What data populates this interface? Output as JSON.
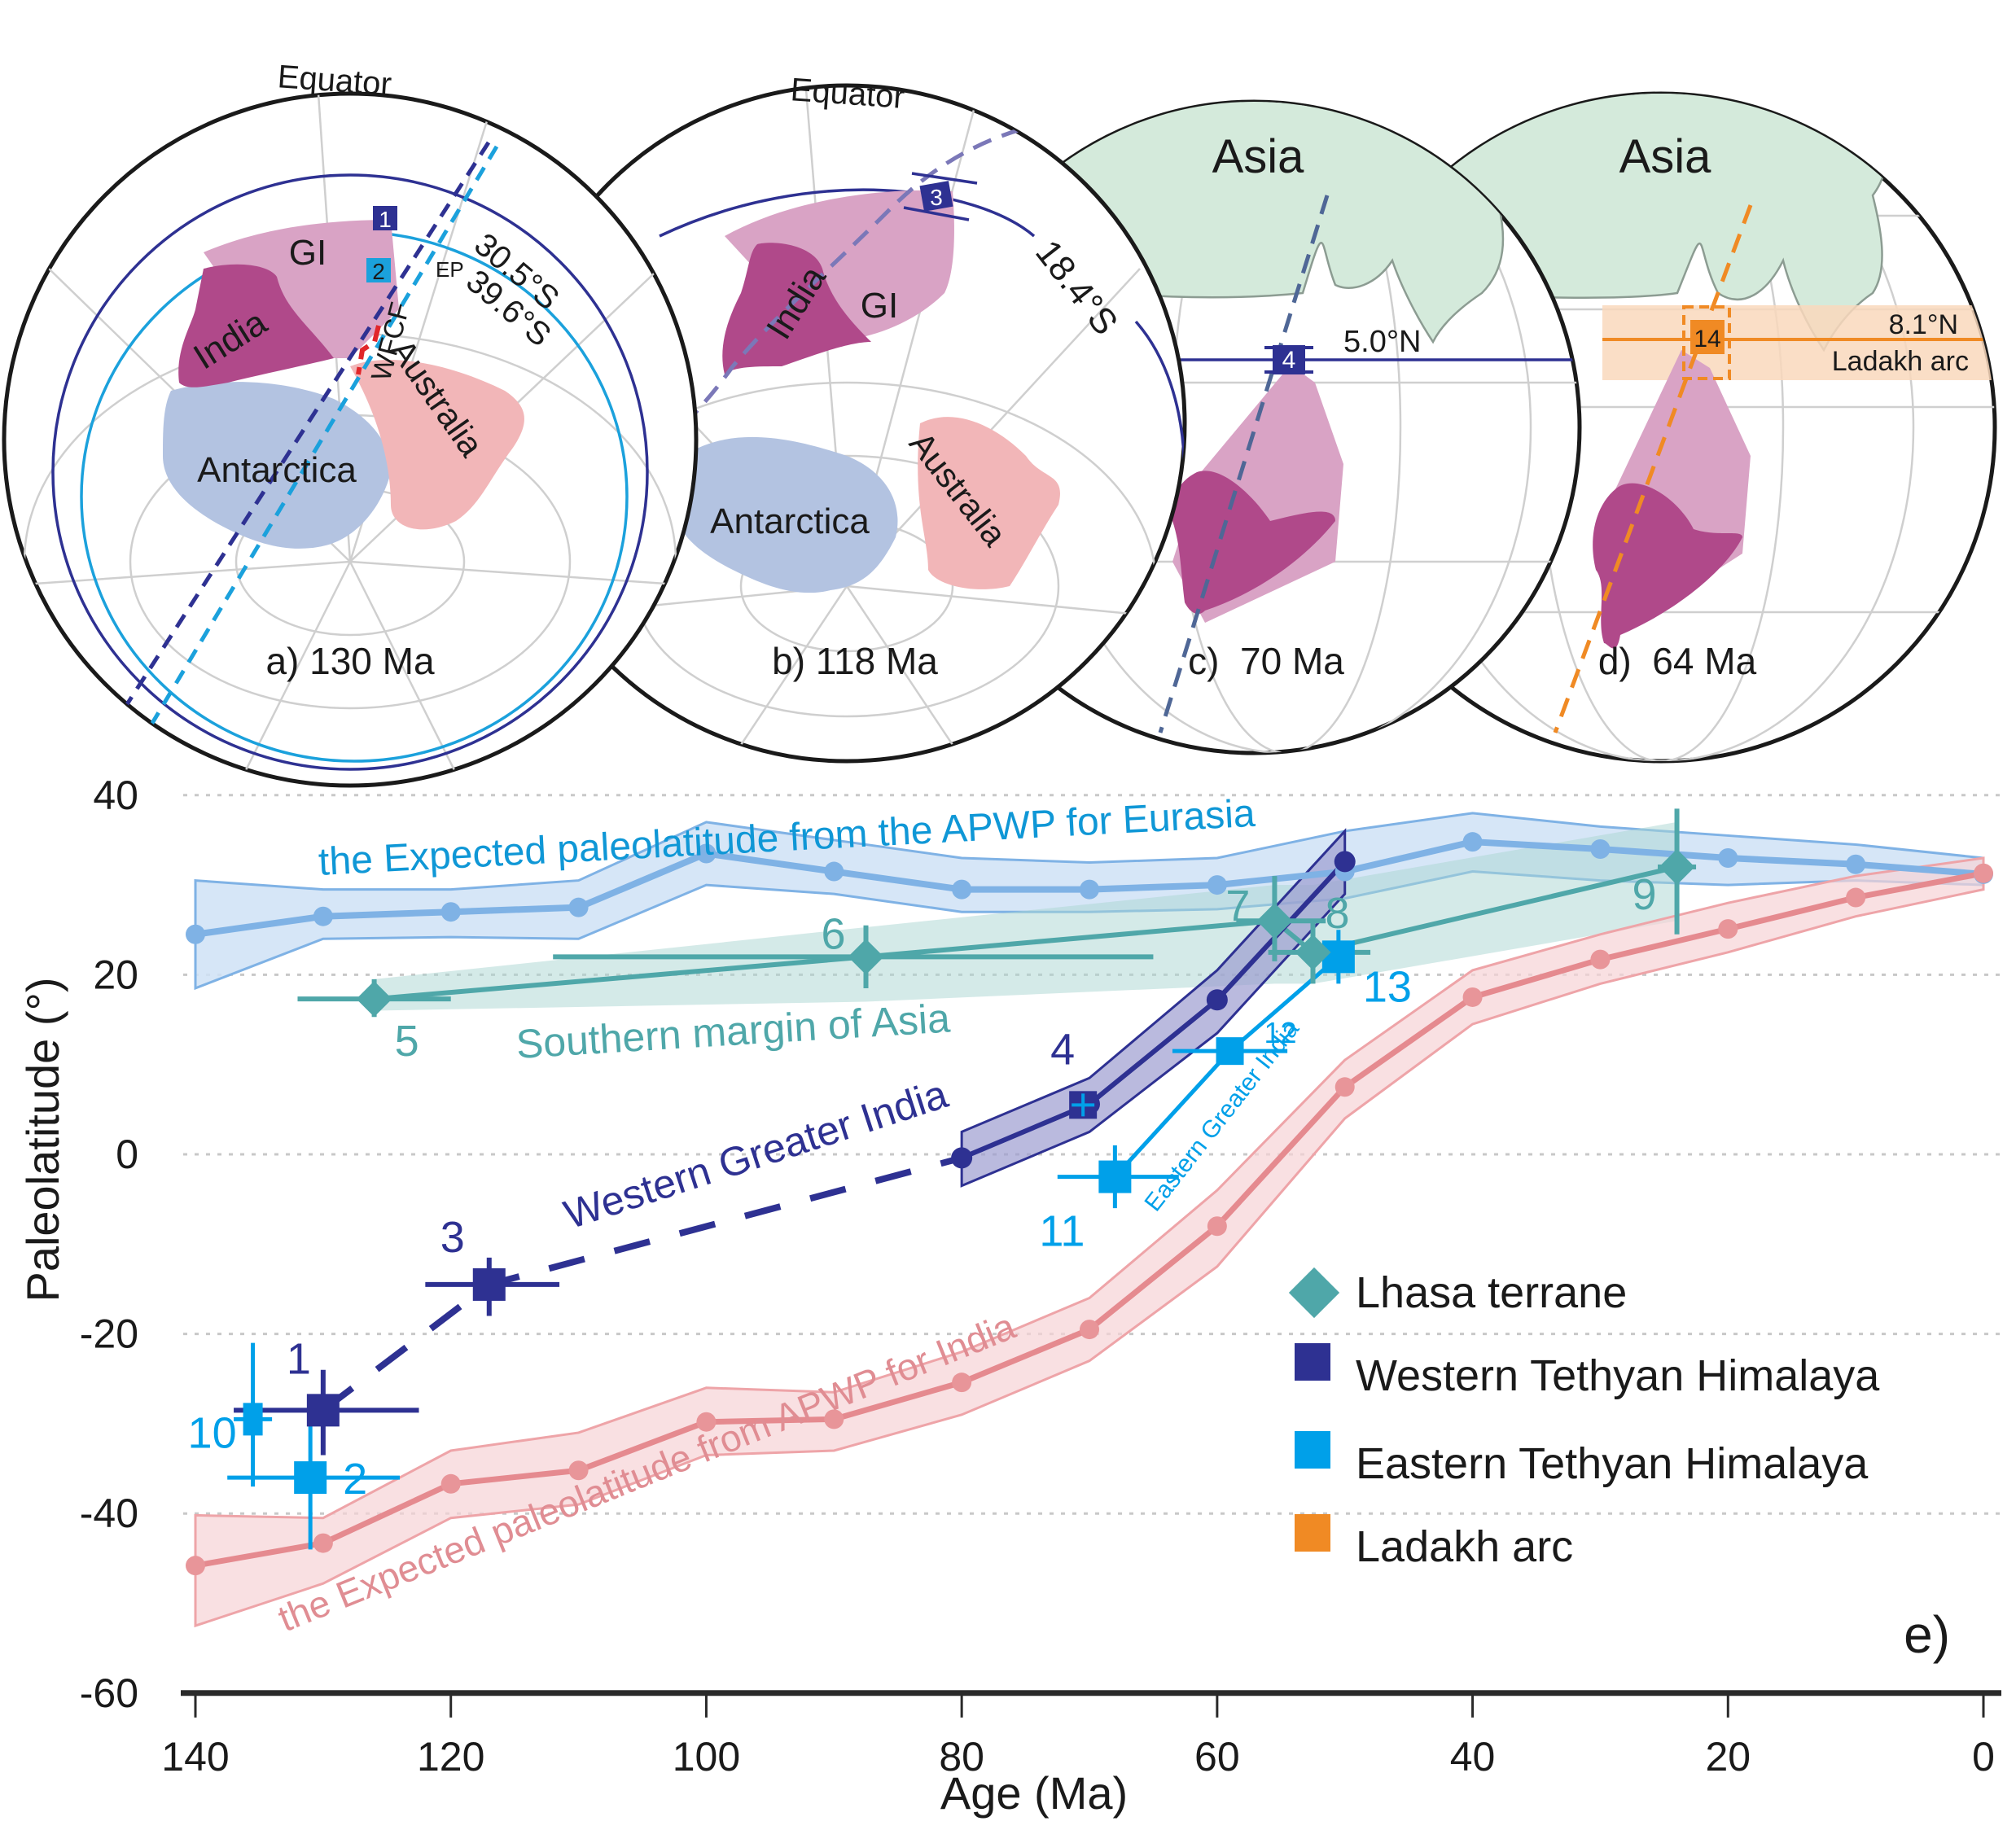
{
  "globes": [
    {
      "id": "a",
      "panel_label": "a) 130 Ma",
      "equator_label": "Equator",
      "continents": [
        "India",
        "GI",
        "Antarctica",
        "Australia"
      ],
      "latitude_labels": [
        "30.5°S",
        "39.6°S"
      ],
      "site_markers": [
        "1",
        "2"
      ],
      "annotations": [
        "EP",
        "WFCF"
      ]
    },
    {
      "id": "b",
      "panel_label": "b) 118 Ma",
      "equator_label": "Equator",
      "continents": [
        "India",
        "GI",
        "Antarctica",
        "Australia"
      ],
      "latitude_labels": [
        "18.4°S"
      ],
      "site_markers": [
        "3"
      ]
    },
    {
      "id": "c",
      "panel_label": "c)  70 Ma",
      "continents": [
        "Asia"
      ],
      "latitude_labels": [
        "5.0°N"
      ],
      "site_markers": [
        "4"
      ]
    },
    {
      "id": "d",
      "panel_label": "d)  64 Ma",
      "continents": [
        "Asia"
      ],
      "latitude_labels": [
        "8.1°N",
        "Ladakh arc"
      ],
      "site_markers": [
        "14"
      ]
    }
  ],
  "colors": {
    "western_th": "#2e3192",
    "eastern_th": "#00a0e9",
    "lhasa": "#4fa7a9",
    "ladakh": "#f08a24",
    "eurasia_apwp": "#7fb2e5",
    "eurasia_label": "#0f97d6",
    "india_apwp": "#e58a8f",
    "india_label": "#e08d93",
    "india_continent": "#b0498a",
    "greater_india": "#d9a3c5",
    "asia": "#d4eadb",
    "antarctica": "#b3c3e1",
    "australia": "#f2b6b8"
  },
  "chart_data": {
    "type": "line",
    "panel_label": "e)",
    "xlabel": "Age (Ma)",
    "ylabel": "Paleolatitude (°)",
    "xlim": [
      140,
      0
    ],
    "ylim": [
      -60,
      40
    ],
    "x_ticks": [
      140,
      120,
      100,
      80,
      60,
      40,
      20,
      0
    ],
    "y_ticks": [
      40,
      20,
      0,
      -20,
      -40,
      -60
    ],
    "grid": "horizontal dotted",
    "legend_position": "lower-right",
    "legend": [
      {
        "label": "Lhasa terrane",
        "marker": "diamond",
        "color_key": "lhasa"
      },
      {
        "label": "Western Tethyan Himalaya",
        "marker": "square",
        "color_key": "western_th"
      },
      {
        "label": "Eastern Tethyan Himalaya",
        "marker": "square",
        "color_key": "eastern_th"
      },
      {
        "label": "Ladakh arc",
        "marker": "square",
        "color_key": "ladakh"
      }
    ],
    "curve_labels": {
      "eurasia": "the Expected paleolatitude from the APWP for Eurasia",
      "india": "the Expected paleolatitude from APWP for India",
      "southern_asia": "Southern margin of Asia",
      "western_gi": "Western Greater India",
      "eastern_gi": "Eastern Greater India"
    },
    "series": [
      {
        "name": "Expected paleolatitude from APWP for Eurasia",
        "color_key": "eurasia_apwp",
        "x": [
          140,
          130,
          120,
          110,
          100,
          90,
          80,
          70,
          60,
          50,
          40,
          30,
          20,
          10,
          0
        ],
        "y": [
          24.5,
          26.5,
          27,
          27.5,
          33.5,
          31.5,
          29.5,
          29.5,
          30,
          31.5,
          34.8,
          34,
          33,
          32.3,
          31.2
        ],
        "upper": [
          30.5,
          29.5,
          29.5,
          30.5,
          37,
          35,
          33,
          32.5,
          33,
          36,
          38,
          36.5,
          35.5,
          34.5,
          33
        ],
        "lower": [
          18.5,
          24,
          24.2,
          24,
          30,
          29,
          27,
          27,
          27.3,
          28.5,
          31.5,
          30.5,
          30,
          30.5,
          30
        ]
      },
      {
        "name": "Expected paleolatitude from APWP for India",
        "color_key": "india_apwp",
        "x": [
          140,
          130,
          120,
          110,
          100,
          90,
          80,
          70,
          60,
          50,
          40,
          30,
          20,
          10,
          0
        ],
        "y": [
          -45.8,
          -43.3,
          -36.7,
          -35.2,
          -29.8,
          -29.5,
          -25.4,
          -19.5,
          -8,
          7.5,
          17.5,
          21.7,
          25.1,
          28.6,
          31.3
        ],
        "upper": [
          -40.2,
          -40.5,
          -33,
          -31,
          -26,
          -26.5,
          -22,
          -16,
          -4,
          10.5,
          20.5,
          24.5,
          28,
          31,
          33
        ],
        "lower": [
          -52.5,
          -47.8,
          -40.5,
          -39,
          -33.5,
          -33,
          -29,
          -23,
          -12.5,
          4,
          14.5,
          19,
          22.5,
          26.5,
          29.5
        ]
      },
      {
        "name": "Western Greater India (dashed)",
        "color_key": "western_th",
        "x": [
          130,
          117,
          80
        ],
        "y": [
          -28.5,
          -14.5,
          -0.4
        ]
      },
      {
        "name": "Western Greater India (solid)",
        "color_key": "western_th",
        "x": [
          80,
          70,
          60,
          50
        ],
        "y": [
          -0.4,
          5.6,
          17.2,
          32.6
        ],
        "upper": [
          2.5,
          8.5,
          20.5,
          36
        ],
        "lower": [
          -3.5,
          2.5,
          13.5,
          29
        ]
      },
      {
        "name": "Eastern Greater India",
        "color_key": "eastern_th",
        "x": [
          68,
          59,
          50.5
        ],
        "y": [
          -2.5,
          11.5,
          22
        ]
      },
      {
        "name": "Southern margin of Asia",
        "color_key": "lhasa",
        "x": [
          126,
          87.5,
          55.5,
          52.5,
          24
        ],
        "y": [
          17.3,
          22,
          26,
          22.5,
          32
        ],
        "band_upper": [
          19.5,
          25.3,
          30,
          30,
          37
        ],
        "band_lower": [
          16,
          17,
          19,
          19,
          26
        ]
      }
    ],
    "points": [
      {
        "id": "1",
        "group": "western_th",
        "age": 130,
        "lat": -28.5,
        "age_min": 122.5,
        "age_max": 137,
        "lat_min": -33.5,
        "lat_max": -24
      },
      {
        "id": "3",
        "group": "western_th",
        "age": 117,
        "lat": -14.5,
        "age_min": 111.5,
        "age_max": 122,
        "lat_min": -18,
        "lat_max": -11.5
      },
      {
        "id": "4",
        "group": "western_th",
        "age": 70.5,
        "lat": 5.5,
        "age_min": 70,
        "age_max": 71,
        "lat_min": 4.5,
        "lat_max": 6.5
      },
      {
        "id": "2",
        "group": "eastern_th",
        "age": 131,
        "lat": -36,
        "age_min": 124,
        "age_max": 137.5,
        "lat_min": -44,
        "lat_max": -27.5
      },
      {
        "id": "10",
        "group": "eastern_th",
        "age": 135.5,
        "lat": -29.5,
        "age_min": 134,
        "age_max": 137,
        "lat_min": -37,
        "lat_max": -21
      },
      {
        "id": "11",
        "group": "eastern_th",
        "age": 68,
        "lat": -2.5,
        "age_min": 63,
        "age_max": 72.5,
        "lat_min": -6,
        "lat_max": 1
      },
      {
        "id": "12",
        "group": "eastern_th",
        "age": 59,
        "lat": 11.5,
        "age_min": 54.5,
        "age_max": 63.5,
        "lat_min": 10,
        "lat_max": 13
      },
      {
        "id": "13",
        "group": "eastern_th",
        "age": 50.5,
        "lat": 22,
        "age_min": 50,
        "age_max": 51,
        "lat_min": 19,
        "lat_max": 25
      },
      {
        "id": "5",
        "group": "lhasa",
        "age": 126,
        "lat": 17.3,
        "age_min": 120,
        "age_max": 132,
        "lat_min": 15.3,
        "lat_max": 19.5
      },
      {
        "id": "6",
        "group": "lhasa",
        "age": 87.5,
        "lat": 22,
        "age_min": 65,
        "age_max": 112,
        "lat_min": 18.5,
        "lat_max": 25.5
      },
      {
        "id": "7",
        "group": "lhasa",
        "age": 55.5,
        "lat": 26,
        "age_min": 51.5,
        "age_max": 58.5,
        "lat_min": 21.5,
        "lat_max": 31
      },
      {
        "id": "8",
        "group": "lhasa",
        "age": 52.5,
        "lat": 22.5,
        "age_min": 48,
        "age_max": 56,
        "lat_min": 19,
        "lat_max": 26
      },
      {
        "id": "9",
        "group": "lhasa",
        "age": 24,
        "lat": 32,
        "age_min": 22.5,
        "age_max": 25.5,
        "lat_min": 24.5,
        "lat_max": 38.5
      }
    ]
  }
}
